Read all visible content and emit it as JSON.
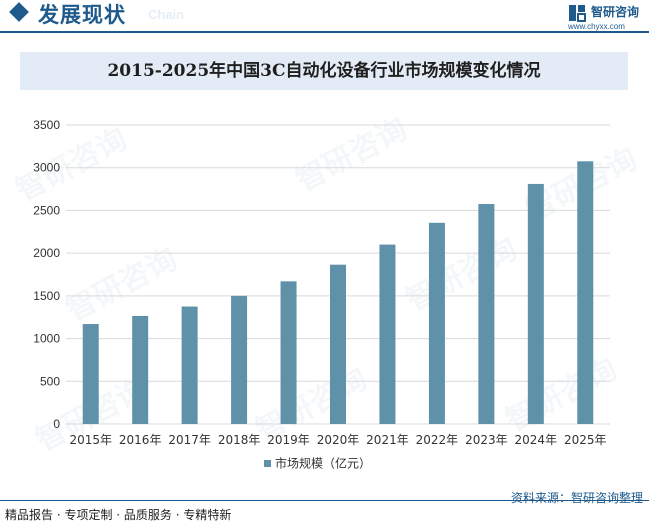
{
  "header": {
    "title": "发展现状",
    "subtitle": "Chain",
    "logo_name": "智研咨询",
    "logo_url": "www.chyxx.com"
  },
  "watermark_text": "智研咨询",
  "footer": {
    "left": "精品报告 · 专项定制 · 品质服务 · 专精特新",
    "right": "资料来源：智研咨询整理"
  },
  "colors": {
    "brand": "#1e5a8c",
    "bar": "#5f91a9",
    "title_band": "#e3ecf6",
    "grid": "#d9d9d9"
  },
  "chart_data": {
    "type": "bar",
    "title": "2015-2025年中国3C自动化设备行业市场规模变化情况",
    "categories": [
      "2015年",
      "2016年",
      "2017年",
      "2018年",
      "2019年",
      "2020年",
      "2021年",
      "2022年",
      "2023年",
      "2024年",
      "2025年"
    ],
    "series": [
      {
        "name": "市场规模（亿元）",
        "values": [
          1170,
          1265,
          1375,
          1500,
          1670,
          1865,
          2100,
          2355,
          2575,
          2810,
          3075
        ]
      }
    ],
    "ylim": [
      0,
      3500
    ],
    "yticks": [
      0,
      500,
      1000,
      1500,
      2000,
      2500,
      3000,
      3500
    ],
    "grid": true,
    "legend": "bottom-center"
  }
}
